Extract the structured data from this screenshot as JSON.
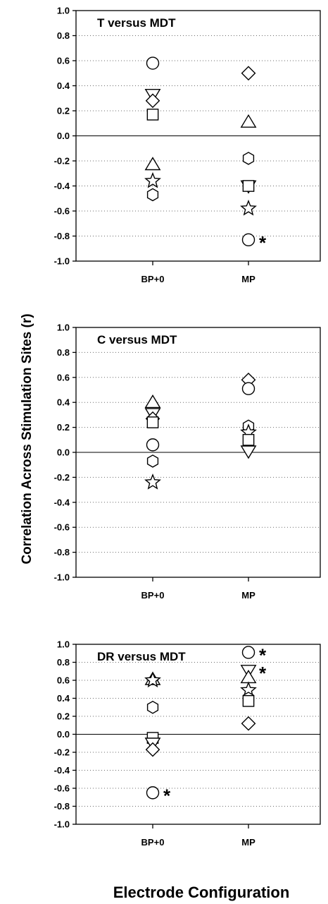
{
  "chart_data": [
    {
      "type": "scatter",
      "title": "T versus MDT",
      "categories": [
        "BP+0",
        "MP"
      ],
      "ylim": [
        -1.0,
        1.0
      ],
      "yticks": [
        "1.0",
        "0.8",
        "0.6",
        "0.4",
        "0.2",
        "0.0",
        "-0.2",
        "-0.4",
        "-0.6",
        "-0.8",
        "-1.0"
      ],
      "grid": true,
      "points": [
        {
          "category": "BP+0",
          "marker": "circle",
          "y": 0.58
        },
        {
          "category": "BP+0",
          "marker": "triangle-down",
          "y": 0.33
        },
        {
          "category": "BP+0",
          "marker": "diamond",
          "y": 0.28
        },
        {
          "category": "BP+0",
          "marker": "square",
          "y": 0.17
        },
        {
          "category": "BP+0",
          "marker": "triangle-up",
          "y": -0.23
        },
        {
          "category": "BP+0",
          "marker": "star",
          "y": -0.36
        },
        {
          "category": "BP+0",
          "marker": "hexagon",
          "y": -0.47
        },
        {
          "category": "MP",
          "marker": "diamond",
          "y": 0.5
        },
        {
          "category": "MP",
          "marker": "triangle-up",
          "y": 0.11
        },
        {
          "category": "MP",
          "marker": "hexagon",
          "y": -0.18
        },
        {
          "category": "MP",
          "marker": "triangle-down",
          "y": -0.4
        },
        {
          "category": "MP",
          "marker": "square",
          "y": -0.4
        },
        {
          "category": "MP",
          "marker": "star",
          "y": -0.58
        },
        {
          "category": "MP",
          "marker": "circle",
          "y": -0.83,
          "annotation": "*"
        }
      ]
    },
    {
      "type": "scatter",
      "title": "C versus MDT",
      "categories": [
        "BP+0",
        "MP"
      ],
      "ylim": [
        -1.0,
        1.0
      ],
      "yticks": [
        "1.0",
        "0.8",
        "0.6",
        "0.4",
        "0.2",
        "0.0",
        "-0.2",
        "-0.4",
        "-0.6",
        "-0.8",
        "-1.0"
      ],
      "grid": true,
      "points": [
        {
          "category": "BP+0",
          "marker": "triangle-up",
          "y": 0.4
        },
        {
          "category": "BP+0",
          "marker": "triangle-down",
          "y": 0.31
        },
        {
          "category": "BP+0",
          "marker": "diamond",
          "y": 0.27
        },
        {
          "category": "BP+0",
          "marker": "square",
          "y": 0.24
        },
        {
          "category": "BP+0",
          "marker": "circle",
          "y": 0.06
        },
        {
          "category": "BP+0",
          "marker": "hexagon",
          "y": -0.07
        },
        {
          "category": "BP+0",
          "marker": "star",
          "y": -0.24
        },
        {
          "category": "MP",
          "marker": "diamond",
          "y": 0.58
        },
        {
          "category": "MP",
          "marker": "circle",
          "y": 0.51
        },
        {
          "category": "MP",
          "marker": "hexagon",
          "y": 0.21
        },
        {
          "category": "MP",
          "marker": "star",
          "y": 0.16
        },
        {
          "category": "MP",
          "marker": "square",
          "y": 0.1
        },
        {
          "category": "MP",
          "marker": "triangle-down",
          "y": 0.01
        }
      ]
    },
    {
      "type": "scatter",
      "title": "DR versus MDT",
      "categories": [
        "BP+0",
        "MP"
      ],
      "ylim": [
        -1.0,
        1.0
      ],
      "yticks": [
        "1.0",
        "0.8",
        "0.6",
        "0.4",
        "0.2",
        "0.0",
        "-0.2",
        "-0.4",
        "-0.6",
        "-0.8",
        "-1.0"
      ],
      "grid": true,
      "points": [
        {
          "category": "BP+0",
          "marker": "triangle-up",
          "y": 0.61
        },
        {
          "category": "BP+0",
          "marker": "star",
          "y": 0.6
        },
        {
          "category": "BP+0",
          "marker": "hexagon",
          "y": 0.3
        },
        {
          "category": "BP+0",
          "marker": "square",
          "y": -0.04
        },
        {
          "category": "BP+0",
          "marker": "triangle-down",
          "y": -0.1
        },
        {
          "category": "BP+0",
          "marker": "diamond",
          "y": -0.17
        },
        {
          "category": "BP+0",
          "marker": "circle",
          "y": -0.65,
          "annotation": "*"
        },
        {
          "category": "MP",
          "marker": "circle",
          "y": 0.91,
          "annotation": "*"
        },
        {
          "category": "MP",
          "marker": "triangle-down",
          "y": 0.71,
          "annotation": "*"
        },
        {
          "category": "MP",
          "marker": "triangle-up",
          "y": 0.63
        },
        {
          "category": "MP",
          "marker": "star",
          "y": 0.49
        },
        {
          "category": "MP",
          "marker": "hexagon",
          "y": 0.4
        },
        {
          "category": "MP",
          "marker": "square",
          "y": 0.37
        },
        {
          "category": "MP",
          "marker": "diamond",
          "y": 0.12
        }
      ]
    }
  ],
  "ylabel": "Correlation Across Stimulation Sites (r)",
  "xlabel": "Electrode Configuration"
}
